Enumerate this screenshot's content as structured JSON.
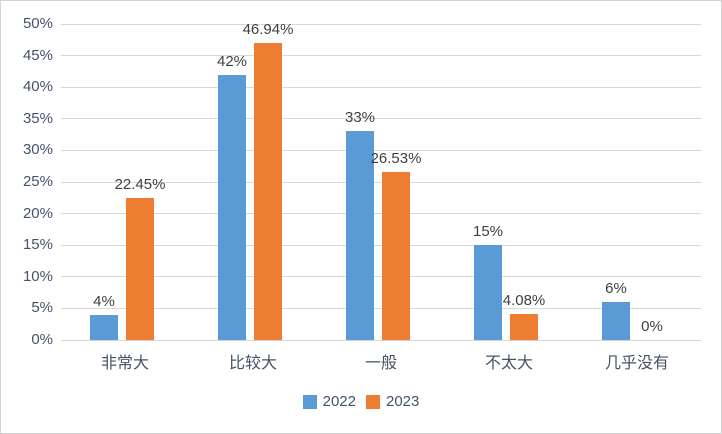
{
  "chart_data": {
    "type": "bar",
    "title": "",
    "categories": [
      "非常大",
      "比较大",
      "一般",
      "不太大",
      "几乎没有"
    ],
    "series": [
      {
        "name": "2022",
        "color": "#5B9BD5",
        "values": [
          4,
          42,
          33,
          15,
          6
        ],
        "data_labels": [
          "4%",
          "42%",
          "33%",
          "15%",
          "6%"
        ]
      },
      {
        "name": "2023",
        "color": "#ED7D31",
        "values": [
          22.45,
          46.94,
          26.53,
          4.08,
          0
        ],
        "data_labels": [
          "22.45%",
          "46.94%",
          "26.53%",
          "4.08%",
          "0%"
        ]
      }
    ],
    "y_axis": {
      "min": 0,
      "max": 50,
      "step": 5,
      "tick_labels": [
        "0%",
        "5%",
        "10%",
        "15%",
        "20%",
        "25%",
        "30%",
        "35%",
        "40%",
        "45%",
        "50%"
      ]
    },
    "grid": true,
    "legend_position": "bottom",
    "colors": {
      "gridline": "#d9d9d9",
      "axis_text": "#44546a",
      "data_label_text": "#404040",
      "background": "#ffffff",
      "border": "#d3d3d3"
    }
  }
}
